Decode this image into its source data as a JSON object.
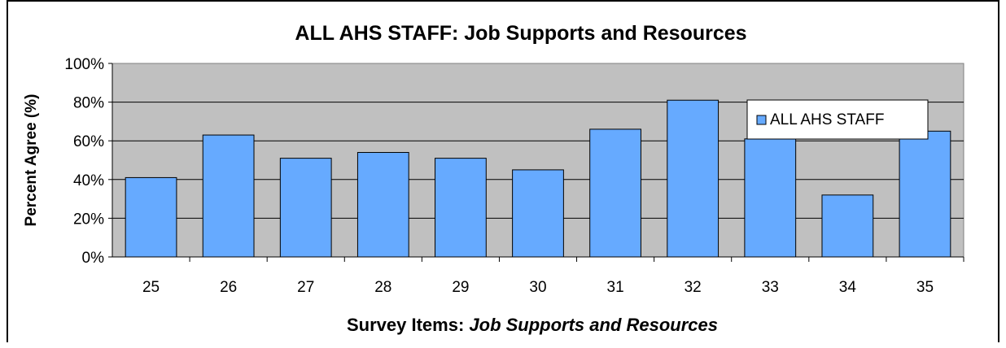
{
  "chart_data": {
    "type": "bar",
    "title": "ALL AHS STAFF: Job Supports and Resources",
    "xlabel_prefix": "Survey Items: ",
    "xlabel_italic": "Job Supports and Resources",
    "ylabel": "Percent Agree (%)",
    "ylim": [
      0,
      100
    ],
    "yticks": [
      "0%",
      "20%",
      "40%",
      "60%",
      "80%",
      "100%"
    ],
    "grid": true,
    "legend_position": "top-right",
    "categories": [
      "25",
      "26",
      "27",
      "28",
      "29",
      "30",
      "31",
      "32",
      "33",
      "34",
      "35"
    ],
    "series": [
      {
        "name": "ALL AHS STAFF",
        "color": "#66aaff",
        "values": [
          41,
          63,
          51,
          54,
          51,
          45,
          66,
          81,
          61,
          32,
          65
        ]
      }
    ],
    "plot_background": "#c0c0c0"
  }
}
